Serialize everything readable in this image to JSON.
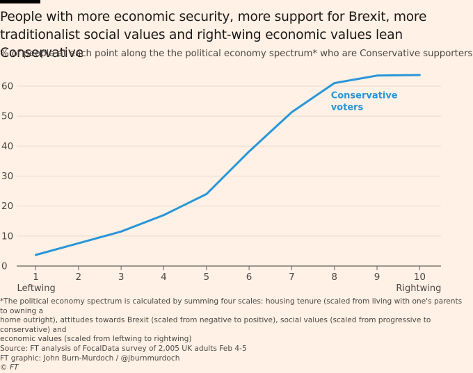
{
  "header": {
    "title_line1": "People with more economic security, more support for Brexit, more",
    "title_line2": "traditionalist social values and right-wing economic values lean Conservative",
    "subtitle": "% of people at each point along the the political economy spectrum* who are Conservative supporters"
  },
  "chart_data": {
    "type": "line",
    "x": [
      1,
      2,
      3,
      4,
      5,
      6,
      7,
      8,
      9,
      10
    ],
    "series": [
      {
        "name": "Conservative voters",
        "label_line1": "Conservative",
        "label_line2": "voters",
        "values": [
          3.7,
          7.6,
          11.5,
          17,
          24,
          38.2,
          51.3,
          61,
          63.5,
          63.7
        ],
        "color": "#2996d8"
      }
    ],
    "x_ticks": [
      "1",
      "2",
      "3",
      "4",
      "5",
      "6",
      "7",
      "8",
      "9",
      "10"
    ],
    "y_ticks": [
      "0",
      "10",
      "20",
      "30",
      "40",
      "50",
      "60"
    ],
    "x_end_labels": {
      "left": "Leftwing",
      "right": "Rightwing"
    },
    "xlim": [
      0.6,
      10.5
    ],
    "ylim": [
      0,
      63
    ],
    "grid": true,
    "colors": {
      "background": "#fff1e5",
      "grid": "#e6d9ce",
      "axis": "#66605c"
    }
  },
  "footer": {
    "note_line1": "*The political economy spectrum is calculated by summing four scales: housing tenure (scaled from living with one's parents to owning a",
    "note_line2": "home outright), attitudes towards Brexit (scaled from negative to positive), social values (scaled from progressive to conservative) and",
    "note_line3": "economic values (scaled from leftwing to rightwing)",
    "source": "Source: FT analysis of FocalData survey of 2,005 UK adults Feb 4-5",
    "credit": "FT graphic: John Burn-Murdoch / @jburnmurdoch",
    "copyright": "© FT"
  }
}
